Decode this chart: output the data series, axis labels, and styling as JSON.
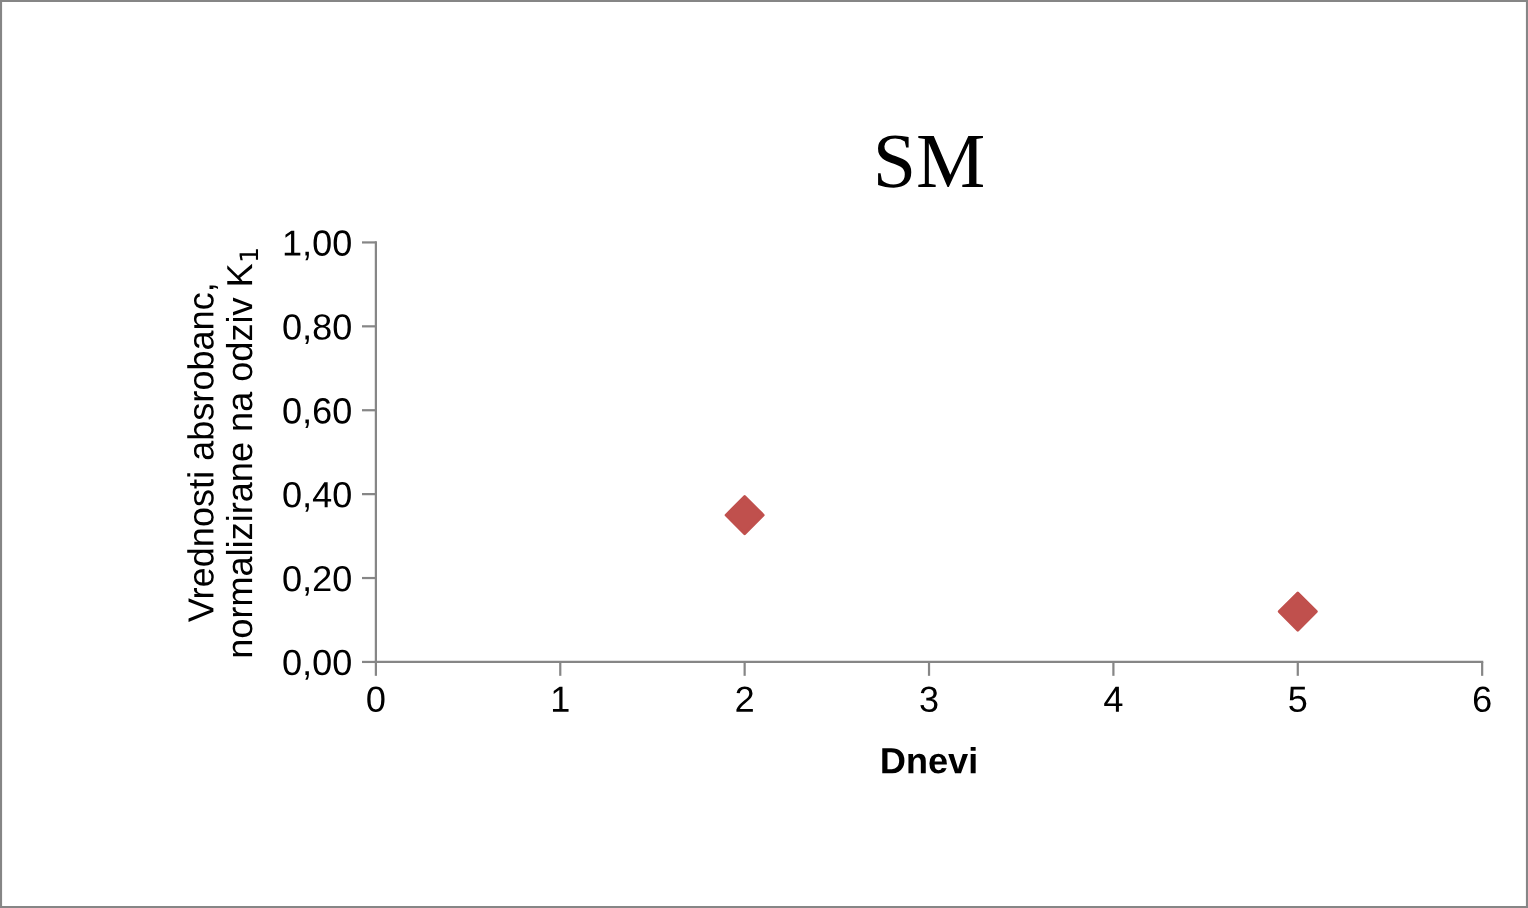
{
  "chart_data": {
    "type": "scatter",
    "title": "SM",
    "xlabel": "Dnevi",
    "ylabel": "Vrednosti absrobanc,\nnormalizirane na odziv K$_{1}$",
    "x": [
      2,
      5
    ],
    "series": [
      {
        "color": "#c0504d",
        "values": [
          0.35,
          0.12
        ]
      }
    ],
    "marker": "diamond",
    "xlim": [
      0,
      6
    ],
    "xticks": [
      0,
      1,
      2,
      3,
      4,
      5,
      6
    ],
    "ylim": [
      0,
      1
    ],
    "yticks": [
      {
        "value": 0,
        "label": "0,00"
      },
      {
        "value": 0.2,
        "label": "0,20"
      },
      {
        "value": 0.4,
        "label": "0,40"
      },
      {
        "value": 0.6,
        "label": "0,60"
      },
      {
        "value": 0.8,
        "label": "0,80"
      },
      {
        "value": 1,
        "label": "1,00"
      }
    ],
    "grid": false,
    "legend": false
  }
}
